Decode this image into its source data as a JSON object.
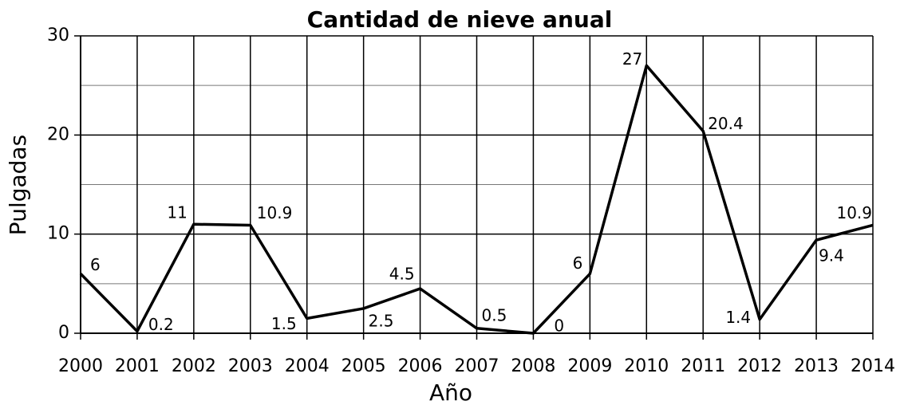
{
  "chart_data": {
    "type": "line",
    "title": "Cantidad de nieve anual",
    "x_label": "Año",
    "y_label": "Pulgadas",
    "x": [
      2000,
      2001,
      2002,
      2003,
      2004,
      2005,
      2006,
      2007,
      2008,
      2009,
      2010,
      2011,
      2012,
      2013,
      2014
    ],
    "series": [
      {
        "name": "Pulgadas",
        "color": "#000000",
        "values": [
          6,
          0.2,
          11,
          10.9,
          1.5,
          2.5,
          4.5,
          0.5,
          0,
          6,
          27,
          20.4,
          1.4,
          9.4,
          10.9
        ]
      }
    ],
    "xlim": [
      2000,
      2014
    ],
    "xticks": [
      2000,
      2001,
      2002,
      2003,
      2004,
      2005,
      2006,
      2007,
      2008,
      2009,
      2010,
      2011,
      2012,
      2013,
      2014
    ],
    "ylim": [
      0,
      30
    ],
    "yticks": [
      0,
      10,
      20,
      30
    ],
    "minor_yticks": [
      5,
      15,
      25
    ],
    "grid": true
  }
}
